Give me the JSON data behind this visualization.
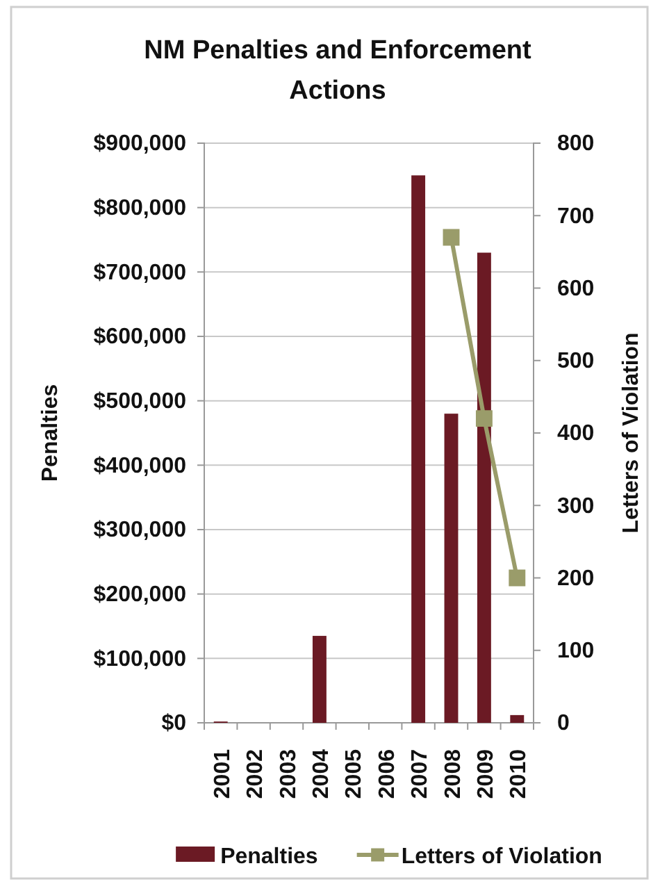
{
  "chart_data": {
    "type": "bar",
    "title": "NM Penalties and Enforcement Actions",
    "ylabel": "Penalties",
    "y2label": "Letters of Violation",
    "categories": [
      "2001",
      "2002",
      "2003",
      "2004",
      "2005",
      "2006",
      "2007",
      "2008",
      "2009",
      "2010"
    ],
    "series": [
      {
        "name": "Penalties",
        "color": "#6b1a24",
        "values": [
          2000,
          null,
          null,
          135000,
          null,
          null,
          850000,
          480000,
          730000,
          12000
        ]
      },
      {
        "name": "Letters of Violation",
        "type": "line",
        "axis": "y2",
        "color": "#9a9c6a",
        "values": [
          null,
          null,
          null,
          null,
          null,
          null,
          null,
          670,
          420,
          200
        ]
      }
    ],
    "ylim": [
      0,
      900000
    ],
    "yticks": [
      {
        "value": 0,
        "label": "$0"
      },
      {
        "value": 100000,
        "label": "$100,000"
      },
      {
        "value": 200000,
        "label": "$200,000"
      },
      {
        "value": 300000,
        "label": "$300,000"
      },
      {
        "value": 400000,
        "label": "$400,000"
      },
      {
        "value": 500000,
        "label": "$500,000"
      },
      {
        "value": 600000,
        "label": "$600,000"
      },
      {
        "value": 700000,
        "label": "$700,000"
      },
      {
        "value": 800000,
        "label": "$800,000"
      },
      {
        "value": 900000,
        "label": "$900,000"
      }
    ],
    "y2lim": [
      0,
      800
    ],
    "y2ticks": [
      0,
      100,
      200,
      300,
      400,
      500,
      600,
      700,
      800
    ],
    "grid": "y",
    "legend": "bottom",
    "marker": "square"
  }
}
